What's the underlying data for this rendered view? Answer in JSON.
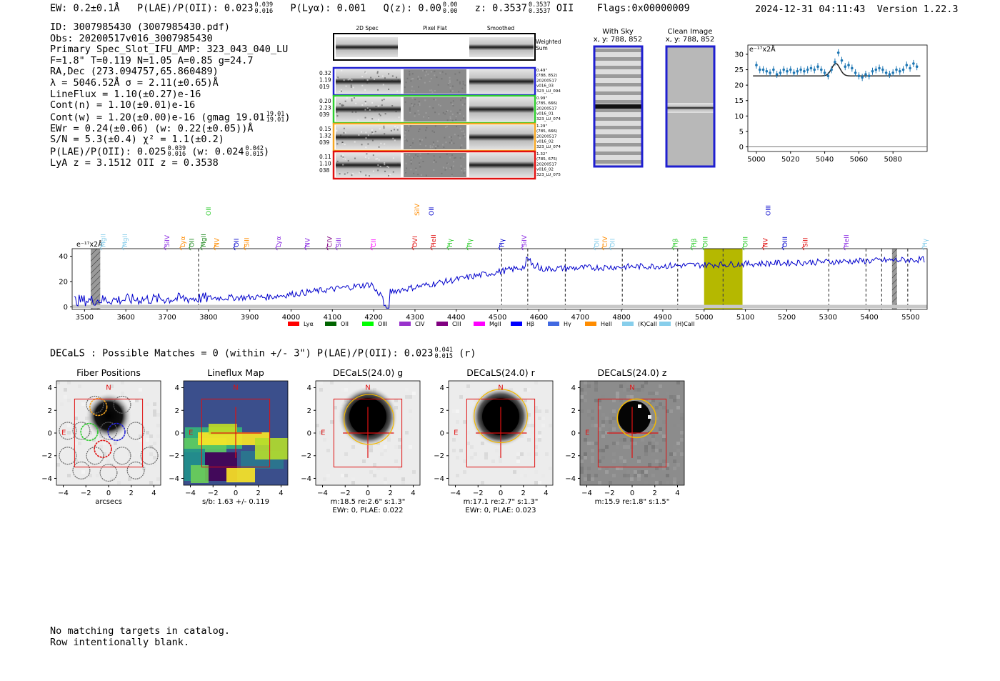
{
  "header": {
    "ew_label": "EW:",
    "ew_value": "0.2±0.1Å",
    "plae_label": "P(LAE)/P(OII):",
    "plae_value": "0.023",
    "plae_hi": "0.039",
    "plae_lo": "0.016",
    "plya_label": "P(Lyα):",
    "plya_value": "0.001",
    "qz_label": "Q(z):",
    "qz_value": "0.00",
    "qz_hi": "0.00",
    "qz_lo": "0.00",
    "z_label": "z:",
    "z_value": "0.3537",
    "z_hi": "0.3537",
    "z_lo": "0.3537",
    "z_line": "OII",
    "flags": "Flags:0x00000009",
    "timestamp": "2024-12-31 04:11:43",
    "version": "Version 1.22.3"
  },
  "info": {
    "id": "ID: 3007985430 (3007985430.pdf)",
    "obs": "Obs: 20200517v016_3007985430",
    "slot": "Primary Spec_Slot_IFU_AMP: 323_043_040_LU",
    "fwhm": "F=1.8\"  T=0.119  N=1.05  A=0.85  g=24.7",
    "radec": "RA,Dec (273.094757,65.860489)",
    "lambda": "λ = 5046.52Å  σ = 2.11(±0.65)Å",
    "lineflux": "LineFlux = 1.10(±0.27)e-16",
    "contn": "Cont(n) = 1.10(±0.01)e-16",
    "contw_main": "Cont(w) = 1.20(±0.00)e-16 (gmag 19.01",
    "contw_hi": "19.01",
    "contw_lo": "19.01",
    "ewr": "EWr = 0.24(±0.06) (w: 0.22(±0.05))Å",
    "sn": "S/N = 5.3(±0.4)  χ² = 1.1(±0.2)",
    "plae_main": "P(LAE)/P(OII): 0.025",
    "plae_hi": "0.039",
    "plae_lo": "0.016",
    "plae_w": "(w: 0.024",
    "plae_w_hi": "0.042",
    "plae_w_lo": "0.015",
    "lya": "LyA z = 3.1512  OII z = 0.3538"
  },
  "cutouts": {
    "headers": [
      "2D Spec",
      "Pixel Flat",
      "Smoothed"
    ],
    "weighted_label": "Weighted Sum",
    "rows": [
      {
        "left": [
          "0.32",
          "1.19",
          "019"
        ],
        "right": [
          "0.49\"",
          "(788, 852)",
          "20200517",
          "v016_03",
          "323_LU_094"
        ],
        "color": "#1f1fd0"
      },
      {
        "left": [
          "0.20",
          "2.23",
          "039"
        ],
        "right": [
          "0.99\"",
          "(785, 666)",
          "20200517",
          "v016_01",
          "323_LU_074"
        ],
        "color": "#2ecc2e"
      },
      {
        "left": [
          "0.15",
          "1.32",
          "039"
        ],
        "right": [
          "1.29\"",
          "(785, 666)",
          "20200517",
          "v016_02",
          "323_LU_074"
        ],
        "color": "#f5a623"
      },
      {
        "left": [
          "0.11",
          "1.10",
          "038"
        ],
        "right": [
          "1.32\"",
          "(785, 675)",
          "20200517",
          "v016_02",
          "323_LU_075"
        ],
        "color": "#e01010"
      }
    ],
    "with_sky_title": "With Sky",
    "with_sky_xy": "x, y: 788, 852",
    "clean_title": "Clean Image",
    "clean_xy": "x, y: 788, 852"
  },
  "zoom_chart": {
    "type": "scatter",
    "ylabel": "e⁻¹⁷x2Å",
    "x": [
      5000,
      5002,
      5004,
      5006,
      5008,
      5010,
      5012,
      5014,
      5016,
      5018,
      5020,
      5022,
      5024,
      5026,
      5028,
      5030,
      5032,
      5034,
      5036,
      5038,
      5040,
      5042,
      5044,
      5046,
      5048,
      5050,
      5052,
      5054,
      5056,
      5058,
      5060,
      5062,
      5064,
      5066,
      5068,
      5070,
      5072,
      5074,
      5076,
      5078,
      5080,
      5082,
      5084,
      5086,
      5088,
      5090,
      5092,
      5094
    ],
    "y": [
      26.5,
      25,
      25,
      24.5,
      24,
      25,
      23.5,
      24,
      25,
      24.5,
      25,
      24,
      24.5,
      25,
      24.5,
      25,
      25.5,
      25,
      26,
      25,
      24,
      23,
      25,
      27.5,
      30.5,
      28,
      26,
      26.5,
      25.5,
      24,
      23,
      22.5,
      23.5,
      23,
      24.5,
      25,
      25.5,
      25,
      24,
      23.5,
      24,
      25,
      24.5,
      25,
      26.5,
      25.5,
      27,
      26
    ],
    "continuum": 23,
    "gauss_peak": 27,
    "gauss_center": 5046.5,
    "xticks": [
      "5000",
      "5020",
      "5040",
      "5060",
      "5080"
    ],
    "yticks": [
      "0",
      "5",
      "10",
      "15",
      "20",
      "25",
      "30"
    ],
    "xlim": [
      4995,
      5100
    ],
    "ylim": [
      -1.5,
      33
    ]
  },
  "spectrum": {
    "type": "line",
    "ylabel": "e⁻¹⁷x2Å",
    "xlim": [
      3470,
      5540
    ],
    "ylim": [
      -2,
      46
    ],
    "xticks": [
      "3500",
      "3600",
      "3700",
      "3800",
      "3900",
      "4000",
      "4100",
      "4200",
      "4300",
      "4400",
      "4500",
      "4600",
      "4700",
      "4800",
      "4900",
      "5000",
      "5100",
      "5200",
      "5300",
      "5400",
      "5500"
    ],
    "yticks": [
      "0",
      "20",
      "40"
    ],
    "highlight_range": [
      5000,
      5093
    ],
    "highlight_color": "#b5b800",
    "hatched": [
      [
        3515,
        3538
      ],
      [
        5455,
        5467
      ]
    ],
    "dashed_lines": [
      3776,
      4510,
      4573,
      4664,
      4802,
      4936,
      5046,
      5302,
      5392,
      5430,
      5493
    ],
    "top_labels": [
      {
        "x": 3545,
        "label": "MgII",
        "color": "#87ceeb",
        "tier": 2
      },
      {
        "x": 3598,
        "label": "MgII",
        "color": "#87ceeb",
        "tier": 2
      },
      {
        "x": 3700,
        "label": "SiIV",
        "color": "#8a2be2",
        "tier": 2
      },
      {
        "x": 3738,
        "label": "Lyα",
        "color": "#ff8c00",
        "tier": 2
      },
      {
        "x": 3760,
        "label": "OII",
        "color": "#228b22",
        "tier": 2
      },
      {
        "x": 3788,
        "label": "MgII",
        "color": "#228b22",
        "tier": 2
      },
      {
        "x": 3800,
        "label": "OII",
        "color": "#2ecc2e",
        "tier": 1
      },
      {
        "x": 3820,
        "label": "NV",
        "color": "#ff8c00",
        "tier": 2
      },
      {
        "x": 3868,
        "label": "OII",
        "color": "#0000cc",
        "tier": 2
      },
      {
        "x": 3893,
        "label": "SiII",
        "color": "#ff8c00",
        "tier": 2
      },
      {
        "x": 3970,
        "label": "Lyα",
        "color": "#8a2be2",
        "tier": 2
      },
      {
        "x": 4040,
        "label": "NV",
        "color": "#8a2be2",
        "tier": 2
      },
      {
        "x": 4093,
        "label": "CIV",
        "color": "#800080",
        "tier": 2
      },
      {
        "x": 4115,
        "label": "SiII",
        "color": "#8a2be2",
        "tier": 2
      },
      {
        "x": 4200,
        "label": "CII",
        "color": "#ff00ff",
        "tier": 2
      },
      {
        "x": 4300,
        "label": "OVI",
        "color": "#e01010",
        "tier": 2
      },
      {
        "x": 4305,
        "label": "SiIV",
        "color": "#ff8c00",
        "tier": 1
      },
      {
        "x": 4340,
        "label": "OII",
        "color": "#0000cc",
        "tier": 1
      },
      {
        "x": 4345,
        "label": "HeII",
        "color": "#e01010",
        "tier": 2
      },
      {
        "x": 4385,
        "label": "Hγ",
        "color": "#2ecc2e",
        "tier": 2
      },
      {
        "x": 4432,
        "label": "Hγ",
        "color": "#2ecc2e",
        "tier": 2
      },
      {
        "x": 4510,
        "label": "Hγ",
        "color": "#0000cc",
        "tier": 2
      },
      {
        "x": 4565,
        "label": "SiIV",
        "color": "#8a2be2",
        "tier": 2
      },
      {
        "x": 4740,
        "label": "OII",
        "color": "#87ceeb",
        "tier": 2
      },
      {
        "x": 4760,
        "label": "CIV",
        "color": "#ff8c00",
        "tier": 2
      },
      {
        "x": 4778,
        "label": "OII",
        "color": "#87ceeb",
        "tier": 2
      },
      {
        "x": 4930,
        "label": "Hβ",
        "color": "#2ecc2e",
        "tier": 2
      },
      {
        "x": 4975,
        "label": "Hβ",
        "color": "#2ecc2e",
        "tier": 2
      },
      {
        "x": 5003,
        "label": "OIII",
        "color": "#2ecc2e",
        "tier": 2
      },
      {
        "x": 5100,
        "label": "OIII",
        "color": "#2ecc2e",
        "tier": 2
      },
      {
        "x": 5148,
        "label": "NV",
        "color": "#e01010",
        "tier": 2
      },
      {
        "x": 5155,
        "label": "OIII",
        "color": "#0000cc",
        "tier": 1
      },
      {
        "x": 5196,
        "label": "OIII",
        "color": "#0000cc",
        "tier": 2
      },
      {
        "x": 5245,
        "label": "SiII",
        "color": "#e01010",
        "tier": 2
      },
      {
        "x": 5345,
        "label": "HeII",
        "color": "#8a2be2",
        "tier": 2
      },
      {
        "x": 5535,
        "label": "Hγ",
        "color": "#87ceeb",
        "tier": 2
      }
    ],
    "legend": [
      {
        "label": "Lyα",
        "color": "#ff0000"
      },
      {
        "label": "OII",
        "color": "#006400"
      },
      {
        "label": "OIII",
        "color": "#00ff00"
      },
      {
        "label": "CIV",
        "color": "#9932cc"
      },
      {
        "label": "CIII",
        "color": "#800080"
      },
      {
        "label": "MgII",
        "color": "#ff00ff"
      },
      {
        "label": "Hβ",
        "color": "#0000ff"
      },
      {
        "label": "Hγ",
        "color": "#4169e1"
      },
      {
        "label": "HeII",
        "color": "#ff8c00"
      },
      {
        "label": "(K)CaII",
        "color": "#87ceeb"
      },
      {
        "label": "(H)CaII",
        "color": "#87ceeb"
      }
    ]
  },
  "decals": {
    "summary_main": "DECaLS : Possible Matches = 0 (within +/- 3\")  P(LAE)/P(OII): 0.023",
    "summary_hi": "0.041",
    "summary_lo": "0.015",
    "summary_band": "(r)",
    "panels": [
      {
        "title": "Fiber Positions",
        "caption1": "arcsecs",
        "caption2": ""
      },
      {
        "title": "Lineflux Map",
        "caption1": "s/b: 1.63 +/- 0.119",
        "caption2": ""
      },
      {
        "title": "DECaLS(24.0) g",
        "caption1": "m:18.5  re:2.6\"  s:1.3\"",
        "caption2": "EWr: 0, PLAE: 0.022"
      },
      {
        "title": "DECaLS(24.0) r",
        "caption1": "m:17.1  re:2.7\"  s:1.3\"",
        "caption2": "EWr: 0, PLAE: 0.023"
      },
      {
        "title": "DECaLS(24.0) z",
        "caption1": "m:15.9  re:1.8\"  s:1.5\"",
        "caption2": ""
      }
    ],
    "ticks": [
      "−4",
      "−2",
      "0",
      "2",
      "4"
    ],
    "north": "N",
    "east": "E"
  },
  "footer": {
    "line1": "No matching targets in catalog.",
    "line2": "Row intentionally blank."
  }
}
